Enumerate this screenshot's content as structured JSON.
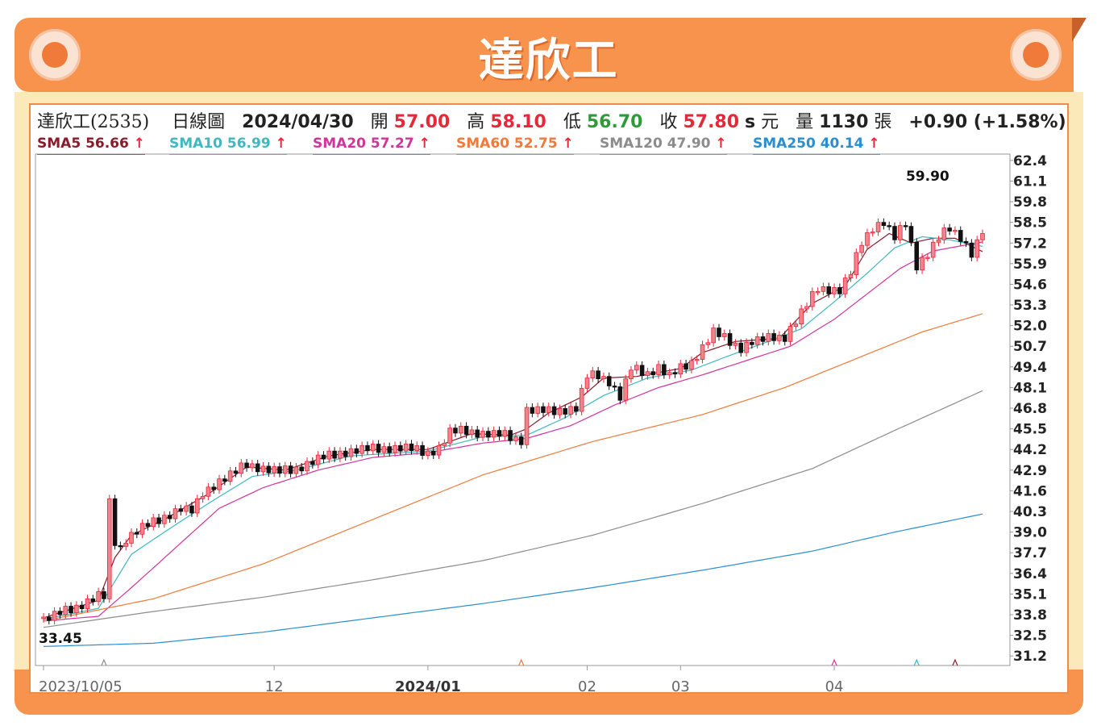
{
  "header": {
    "title": "達欣工"
  },
  "info": {
    "name": "達欣工(2535)",
    "chart_kind": "日線圖",
    "date": "2024/04/30",
    "open_label": "開",
    "open": "57.00",
    "high_label": "高",
    "high": "58.10",
    "low_label": "低",
    "low": "56.70",
    "close_label": "收",
    "close": "57.80",
    "close_suffix": "s",
    "unit": "元",
    "volume_label": "量",
    "volume": "1130",
    "volume_unit": "張",
    "change": "+0.90 (+1.58%)"
  },
  "sma_legend": [
    {
      "label": "SMA5 56.66",
      "arrow": "↑",
      "color": "#8b1a2b"
    },
    {
      "label": "SMA10 56.99",
      "arrow": "↑",
      "color": "#3fb8c0"
    },
    {
      "label": "SMA20 57.27",
      "arrow": "↑",
      "color": "#d0359b"
    },
    {
      "label": "SMA60 52.75",
      "arrow": "↑",
      "color": "#f07a3a"
    },
    {
      "label": "SMA120 47.90",
      "arrow": "↑",
      "color": "#8c8c8c"
    },
    {
      "label": "SMA250 40.14",
      "arrow": "↑",
      "color": "#2a8fcf"
    }
  ],
  "colors": {
    "up": "#e5283a",
    "up_body": "#f0838d",
    "down": "#111111",
    "grid": "#999999"
  },
  "chart_data": {
    "type": "candlestick",
    "y_ticks": [
      "62.4",
      "61.1",
      "59.8",
      "58.5",
      "57.2",
      "55.9",
      "54.6",
      "53.3",
      "52.0",
      "50.7",
      "49.4",
      "48.1",
      "46.8",
      "45.5",
      "44.2",
      "42.9",
      "41.6",
      "40.3",
      "39.0",
      "37.7",
      "36.4",
      "35.1",
      "33.8",
      "32.5",
      "31.2"
    ],
    "ylim": [
      30.6,
      62.8
    ],
    "x_ticks": [
      {
        "label": "2023/10/05",
        "index": 0,
        "bold": false
      },
      {
        "label": "12",
        "index": 42,
        "bold": false
      },
      {
        "label": "2024/01",
        "index": 70,
        "bold": true
      },
      {
        "label": "02",
        "index": 99,
        "bold": false
      },
      {
        "label": "03",
        "index": 116,
        "bold": false
      },
      {
        "label": "04",
        "index": 144,
        "bold": false
      }
    ],
    "annotations": [
      {
        "text": "59.90",
        "index": 161,
        "value": 59.9,
        "pos": "above"
      },
      {
        "text": "33.45",
        "index": 0,
        "value": 33.45,
        "pos": "below"
      }
    ],
    "n_bars": 172,
    "close_keys": [
      [
        0,
        33.5
      ],
      [
        6,
        34.3
      ],
      [
        10,
        35.0
      ],
      [
        11,
        34.9
      ],
      [
        12,
        40.8
      ],
      [
        13,
        38.4
      ],
      [
        14,
        38.0
      ],
      [
        15,
        38.6
      ],
      [
        18,
        39.3
      ],
      [
        20,
        39.6
      ],
      [
        25,
        40.5
      ],
      [
        27,
        40.3
      ],
      [
        28,
        40.8
      ],
      [
        29,
        41.5
      ],
      [
        32,
        42.2
      ],
      [
        35,
        42.8
      ],
      [
        37,
        43.3
      ],
      [
        40,
        43.0
      ],
      [
        43,
        42.8
      ],
      [
        46,
        43.0
      ],
      [
        50,
        43.6
      ],
      [
        54,
        44.0
      ],
      [
        58,
        44.2
      ],
      [
        63,
        44.3
      ],
      [
        66,
        44.3
      ],
      [
        70,
        44.0
      ],
      [
        72,
        44.3
      ],
      [
        74,
        45.3
      ],
      [
        77,
        45.4
      ],
      [
        80,
        45.2
      ],
      [
        84,
        45.1
      ],
      [
        87,
        44.8
      ],
      [
        88,
        46.7
      ],
      [
        92,
        46.6
      ],
      [
        97,
        46.8
      ],
      [
        99,
        48.8
      ],
      [
        101,
        48.9
      ],
      [
        103,
        48.5
      ],
      [
        105,
        47.5
      ],
      [
        107,
        49.3
      ],
      [
        110,
        49.0
      ],
      [
        112,
        49.4
      ],
      [
        114,
        48.8
      ],
      [
        116,
        49.3
      ],
      [
        118,
        49.7
      ],
      [
        122,
        51.6
      ],
      [
        125,
        51.0
      ],
      [
        127,
        50.6
      ],
      [
        129,
        51.0
      ],
      [
        131,
        51.1
      ],
      [
        133,
        51.3
      ],
      [
        135,
        51.3
      ],
      [
        137,
        52.3
      ],
      [
        139,
        53.3
      ],
      [
        141,
        54.4
      ],
      [
        143,
        54.3
      ],
      [
        145,
        54.2
      ],
      [
        147,
        55.3
      ],
      [
        149,
        57.3
      ],
      [
        151,
        58.2
      ],
      [
        153,
        58.5
      ],
      [
        155,
        57.5
      ],
      [
        157,
        58.5
      ],
      [
        159,
        55.8
      ],
      [
        161,
        56.5
      ],
      [
        163,
        57.5
      ],
      [
        165,
        58.2
      ],
      [
        167,
        57.6
      ],
      [
        169,
        56.5
      ],
      [
        171,
        57.8
      ]
    ],
    "close_wiggle": [
      0.15,
      -0.2,
      0.25,
      -0.1,
      0.3,
      -0.25,
      0.1,
      -0.3
    ],
    "sma": [
      {
        "name": "SMA5",
        "color": "#8b1a2b",
        "points": [
          [
            0,
            33.6
          ],
          [
            10,
            34.7
          ],
          [
            13,
            37.4
          ],
          [
            16,
            38.8
          ],
          [
            22,
            39.8
          ],
          [
            30,
            41.4
          ],
          [
            37,
            43.1
          ],
          [
            44,
            42.9
          ],
          [
            52,
            43.8
          ],
          [
            60,
            44.2
          ],
          [
            70,
            44.2
          ],
          [
            78,
            45.2
          ],
          [
            85,
            45.1
          ],
          [
            88,
            45.5
          ],
          [
            92,
            46.5
          ],
          [
            98,
            47.5
          ],
          [
            102,
            48.7
          ],
          [
            108,
            48.8
          ],
          [
            116,
            49.3
          ],
          [
            120,
            50.3
          ],
          [
            126,
            51.0
          ],
          [
            134,
            51.2
          ],
          [
            140,
            53.4
          ],
          [
            146,
            54.5
          ],
          [
            150,
            56.8
          ],
          [
            154,
            57.8
          ],
          [
            158,
            57.2
          ],
          [
            162,
            57.5
          ],
          [
            166,
            57.5
          ],
          [
            171,
            56.66
          ]
        ]
      },
      {
        "name": "SMA10",
        "color": "#3fb8c0",
        "points": [
          [
            0,
            33.5
          ],
          [
            10,
            34.2
          ],
          [
            16,
            37.6
          ],
          [
            22,
            39.0
          ],
          [
            30,
            40.8
          ],
          [
            38,
            42.5
          ],
          [
            46,
            42.9
          ],
          [
            56,
            43.8
          ],
          [
            70,
            44.1
          ],
          [
            80,
            45.0
          ],
          [
            88,
            45.1
          ],
          [
            95,
            46.2
          ],
          [
            102,
            47.6
          ],
          [
            110,
            48.7
          ],
          [
            118,
            49.2
          ],
          [
            124,
            50.0
          ],
          [
            132,
            51.0
          ],
          [
            138,
            51.8
          ],
          [
            144,
            53.5
          ],
          [
            150,
            55.3
          ],
          [
            155,
            56.9
          ],
          [
            160,
            57.6
          ],
          [
            165,
            57.4
          ],
          [
            171,
            56.99
          ]
        ]
      },
      {
        "name": "SMA20",
        "color": "#d0359b",
        "points": [
          [
            0,
            33.4
          ],
          [
            10,
            33.7
          ],
          [
            16,
            35.5
          ],
          [
            24,
            38.0
          ],
          [
            32,
            40.5
          ],
          [
            40,
            41.8
          ],
          [
            50,
            42.9
          ],
          [
            60,
            43.7
          ],
          [
            70,
            44.0
          ],
          [
            80,
            44.6
          ],
          [
            88,
            44.9
          ],
          [
            96,
            45.7
          ],
          [
            104,
            47.0
          ],
          [
            112,
            48.1
          ],
          [
            120,
            48.9
          ],
          [
            128,
            49.8
          ],
          [
            136,
            50.7
          ],
          [
            144,
            52.4
          ],
          [
            150,
            54.0
          ],
          [
            156,
            55.6
          ],
          [
            162,
            56.7
          ],
          [
            171,
            57.27
          ]
        ]
      },
      {
        "name": "SMA60",
        "color": "#f07a3a",
        "points": [
          [
            0,
            33.4
          ],
          [
            20,
            34.8
          ],
          [
            40,
            37.0
          ],
          [
            60,
            39.8
          ],
          [
            80,
            42.6
          ],
          [
            100,
            44.7
          ],
          [
            120,
            46.4
          ],
          [
            135,
            48.1
          ],
          [
            150,
            50.2
          ],
          [
            160,
            51.6
          ],
          [
            171,
            52.75
          ]
        ]
      },
      {
        "name": "SMA120",
        "color": "#8c8c8c",
        "points": [
          [
            0,
            33.0
          ],
          [
            20,
            34.0
          ],
          [
            40,
            34.9
          ],
          [
            60,
            36.0
          ],
          [
            80,
            37.2
          ],
          [
            100,
            38.8
          ],
          [
            120,
            40.8
          ],
          [
            140,
            43.0
          ],
          [
            155,
            45.4
          ],
          [
            171,
            47.9
          ]
        ]
      },
      {
        "name": "SMA250",
        "color": "#2a8fcf",
        "points": [
          [
            0,
            31.8
          ],
          [
            20,
            32.0
          ],
          [
            40,
            32.7
          ],
          [
            60,
            33.6
          ],
          [
            80,
            34.5
          ],
          [
            100,
            35.5
          ],
          [
            120,
            36.6
          ],
          [
            140,
            37.8
          ],
          [
            155,
            39.0
          ],
          [
            171,
            40.14
          ]
        ]
      }
    ],
    "markers": [
      {
        "index": 11,
        "color": "#8c8c8c"
      },
      {
        "index": 87,
        "color": "#f07a3a"
      },
      {
        "index": 144,
        "color": "#d0359b"
      },
      {
        "index": 159,
        "color": "#3fb8c0"
      },
      {
        "index": 166,
        "color": "#8b1a2b"
      }
    ]
  }
}
